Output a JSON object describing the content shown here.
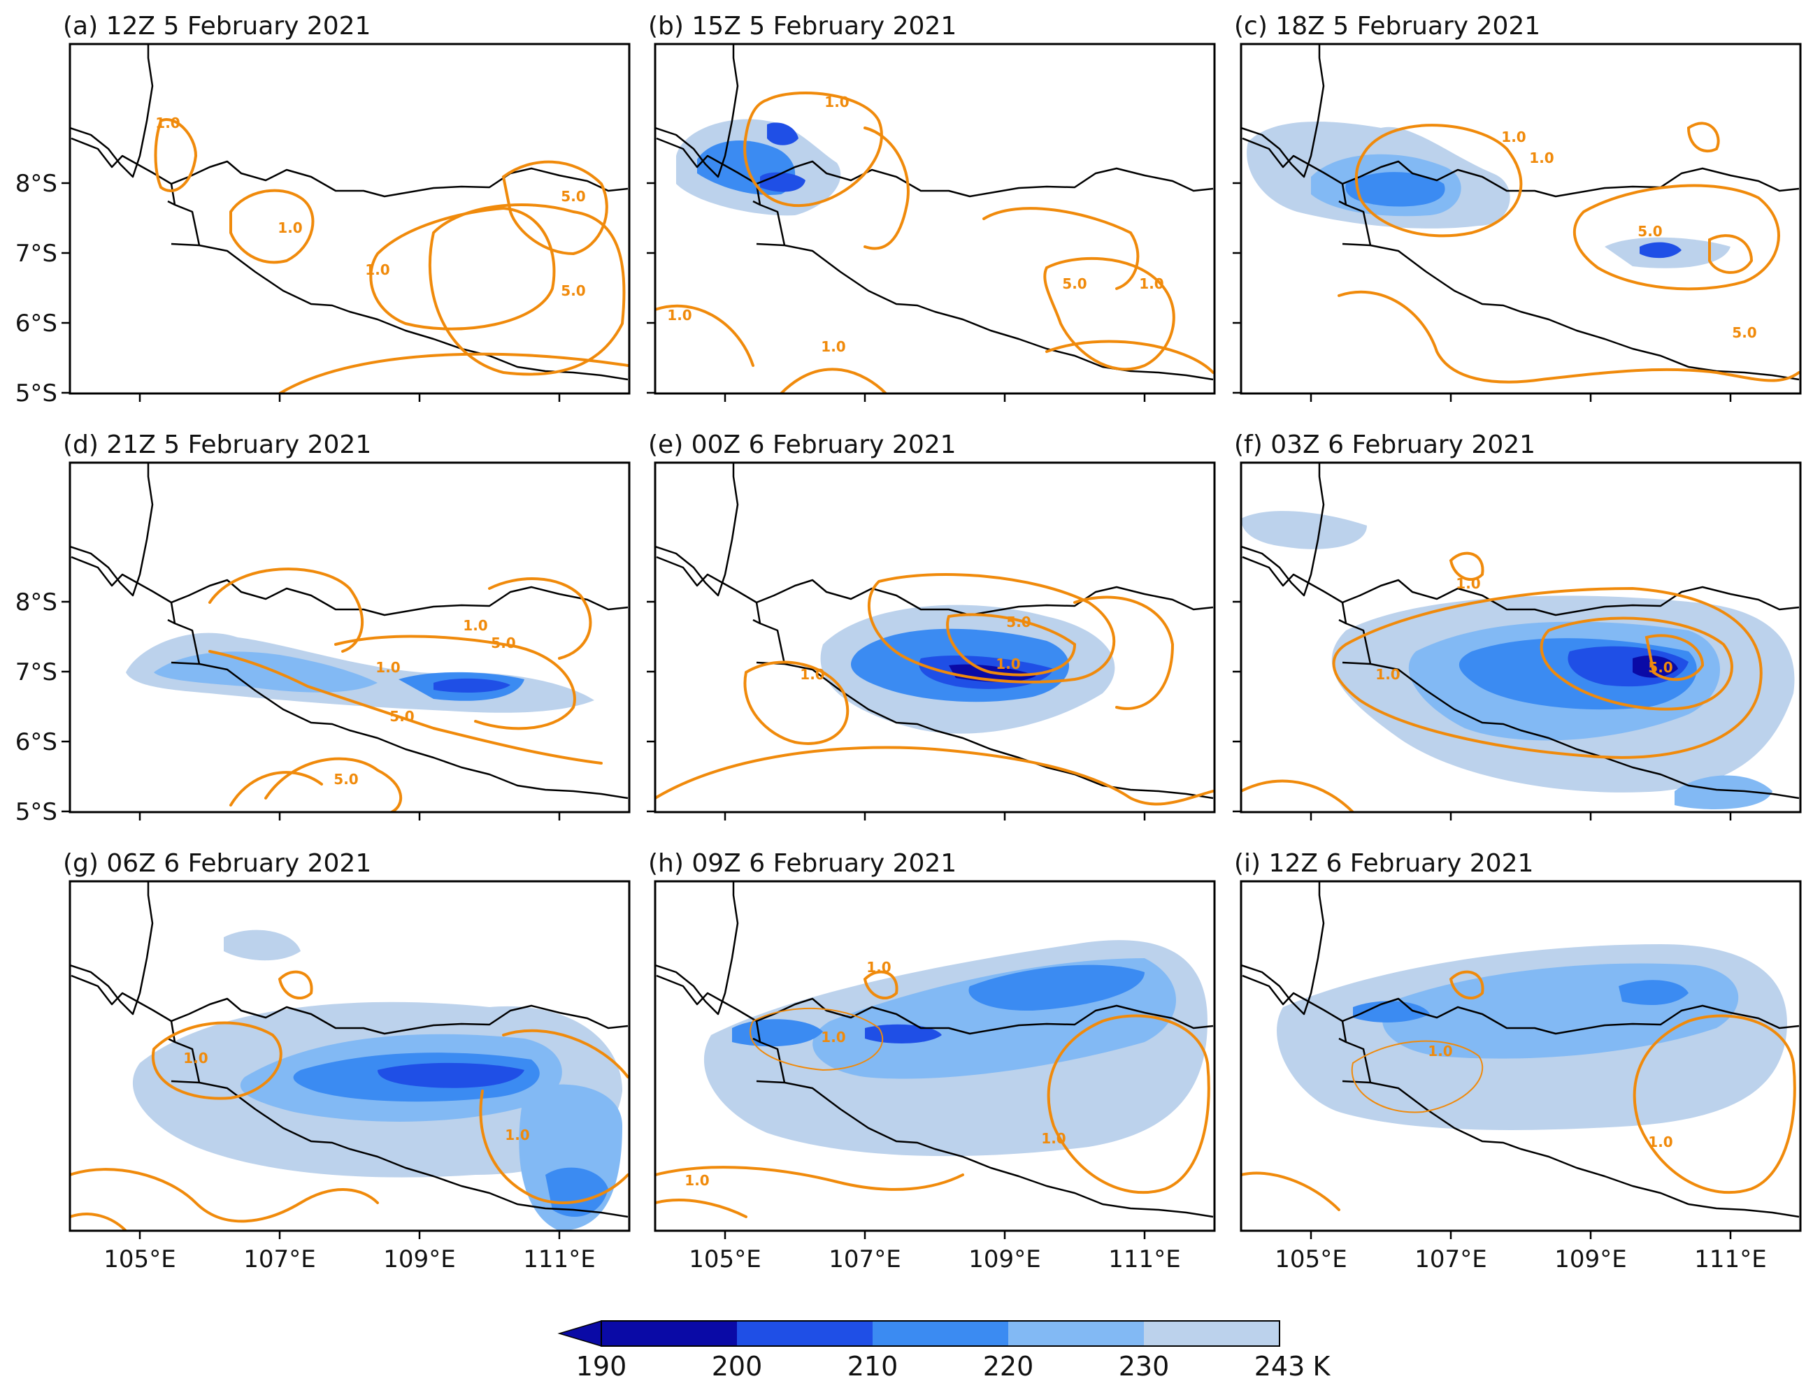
{
  "figure": {
    "panels": [
      {
        "label": "(a) 12Z 5 February 2021",
        "contour_labels": [
          "1.0",
          "1.0",
          "1.0",
          "5.0",
          "5.0"
        ]
      },
      {
        "label": "(b) 15Z 5 February 2021",
        "contour_labels": [
          "1.0",
          "1.0",
          "1.0",
          "1.0",
          "5.0"
        ]
      },
      {
        "label": "(c) 18Z 5 February 2021",
        "contour_labels": [
          "1.0",
          "1.0",
          "5.0",
          "5.0"
        ]
      },
      {
        "label": "(d) 21Z 5 February 2021",
        "contour_labels": [
          "1.0",
          "5.0",
          "1.0",
          "5.0",
          "5.0"
        ]
      },
      {
        "label": "(e) 00Z 6 February 2021",
        "contour_labels": [
          "5.0",
          "1.0",
          "1.0"
        ]
      },
      {
        "label": "(f) 03Z 6 February 2021",
        "contour_labels": [
          "1.0",
          "5.0",
          "1.0"
        ]
      },
      {
        "label": "(g) 06Z 6 February 2021",
        "contour_labels": [
          "1.0",
          "1.0"
        ]
      },
      {
        "label": "(h) 09Z 6 February 2021",
        "contour_labels": [
          "1.0",
          "1.0",
          "1.0",
          "1.0"
        ]
      },
      {
        "label": "(i) 12Z 6 February 2021",
        "contour_labels": [
          "1.0",
          "1.0"
        ]
      }
    ],
    "lat_ticks": [
      "5°S",
      "6°S",
      "7°S",
      "8°S"
    ],
    "lon_ticks": [
      "105°E",
      "107°E",
      "109°E",
      "111°E"
    ],
    "colorbar": {
      "ticks": [
        "190",
        "200",
        "210",
        "220",
        "230",
        "243"
      ],
      "unit": "K",
      "colors": [
        "#0a0aa6",
        "#1f4fe6",
        "#3b8bf2",
        "#82b9f4",
        "#bcd2ec"
      ]
    },
    "contour_color": "#f08a0b",
    "box_color": "#e8141c",
    "coast_color": "#000000"
  }
}
